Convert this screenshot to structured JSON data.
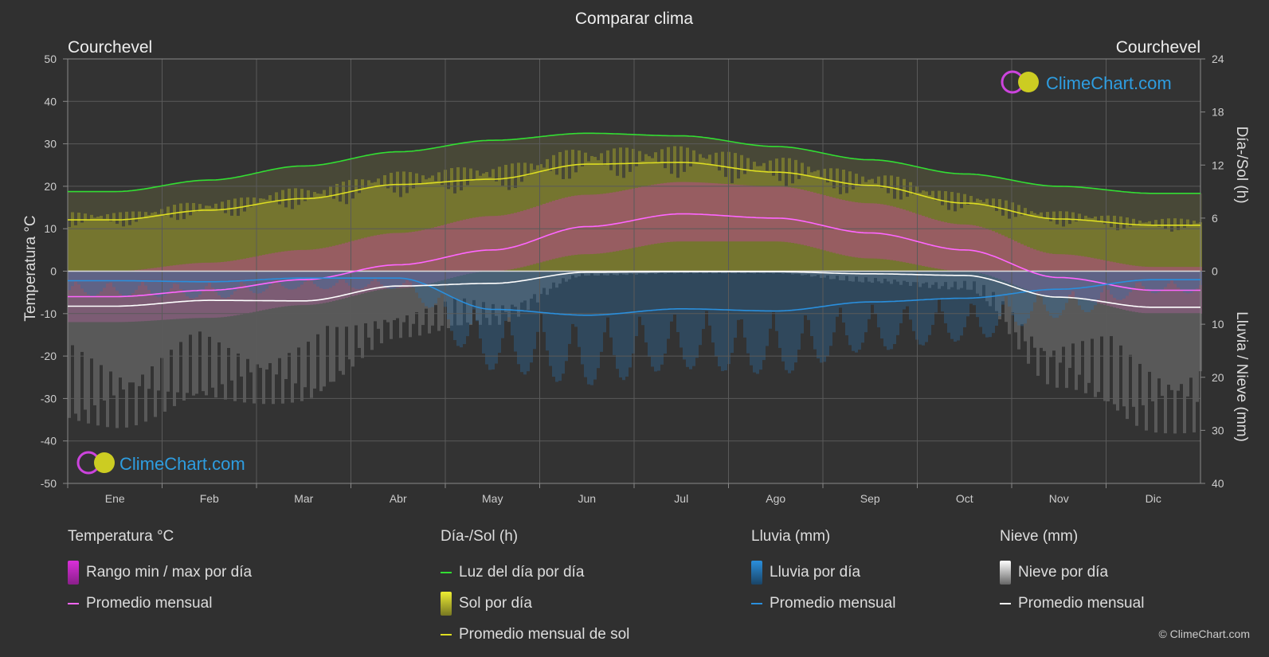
{
  "title": "Comparar clima",
  "location_left": "Courchevel",
  "location_right": "Courchevel",
  "axis_left_label": "Temperatura °C",
  "axis_right_top_label": "Día-/Sol (h)",
  "axis_right_bottom_label": "Lluvia / Nieve (mm)",
  "watermark": "ClimeChart.com",
  "copyright": "© ClimeChart.com",
  "colors": {
    "background": "#303030",
    "daylight": "#33dd33",
    "sunshine": "#dddd22",
    "temp_avg": "#ff66ff",
    "rain": "#2a8fdd",
    "snow": "#ffffff"
  },
  "legend": {
    "temp": {
      "title": "Temperatura °C",
      "range": "Rango min / max por día",
      "avg": "Promedio mensual"
    },
    "sun": {
      "title": "Día-/Sol (h)",
      "daylight": "Luz del día por día",
      "sunshine": "Sol por día",
      "avg": "Promedio mensual de sol"
    },
    "rain": {
      "title": "Lluvia (mm)",
      "daily": "Lluvia por día",
      "avg": "Promedio mensual"
    },
    "snow": {
      "title": "Nieve (mm)",
      "daily": "Nieve por día",
      "avg": "Promedio mensual"
    }
  },
  "chart_data": {
    "type": "line",
    "categories": [
      "Ene",
      "Feb",
      "Mar",
      "Abr",
      "May",
      "Jun",
      "Jul",
      "Ago",
      "Sep",
      "Oct",
      "Nov",
      "Dic"
    ],
    "y_left": {
      "label": "Temperatura °C",
      "ylim": [
        -50,
        50
      ],
      "ticks": [
        50,
        40,
        30,
        20,
        10,
        0,
        -10,
        -20,
        -30,
        -40,
        -50
      ]
    },
    "y_right_top": {
      "label": "Día-/Sol (h)",
      "ylim": [
        0,
        24
      ],
      "ticks": [
        24,
        18,
        12,
        6,
        0
      ]
    },
    "y_right_bottom": {
      "label": "Lluvia / Nieve (mm)",
      "ylim": [
        0,
        40
      ],
      "ticks": [
        0,
        10,
        20,
        30,
        40
      ]
    },
    "grid": true,
    "series": [
      {
        "name": "Luz del día por día",
        "axis": "sun_h",
        "values": [
          9.0,
          10.3,
          11.9,
          13.5,
          14.8,
          15.6,
          15.3,
          14.1,
          12.6,
          11.0,
          9.6,
          8.8
        ]
      },
      {
        "name": "Promedio mensual de sol",
        "axis": "sun_h",
        "values": [
          5.8,
          6.9,
          8.2,
          9.8,
          10.4,
          12.1,
          12.3,
          11.2,
          9.7,
          7.7,
          5.9,
          5.2
        ]
      },
      {
        "name": "Temperatura promedio mensual",
        "axis": "temp_c",
        "values": [
          -6,
          -4.5,
          -2,
          1.5,
          5,
          10.5,
          13.5,
          12.5,
          9,
          5,
          -1.5,
          -4.5
        ]
      },
      {
        "name": "Lluvia promedio mensual",
        "axis": "precip_mm",
        "values": [
          1.8,
          2.0,
          1.3,
          1.3,
          7.2,
          8.3,
          7.1,
          7.5,
          5.8,
          5.1,
          3.4,
          1.6
        ]
      },
      {
        "name": "Nieve promedio mensual",
        "axis": "precip_mm",
        "values": [
          6.6,
          5.5,
          5.6,
          2.8,
          2.3,
          0.2,
          0.1,
          0.1,
          0.5,
          0.8,
          4.9,
          6.8
        ]
      }
    ],
    "temp_range_daily": {
      "min": [
        -12,
        -11,
        -8,
        -4,
        0,
        4,
        7,
        7,
        3,
        0,
        -6,
        -10
      ],
      "max": [
        0,
        2,
        5,
        9,
        13,
        18,
        21,
        20,
        16,
        11,
        4,
        1
      ]
    }
  }
}
